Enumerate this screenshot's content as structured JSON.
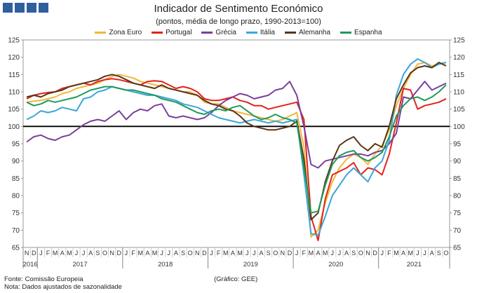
{
  "header": {
    "title": "Indicador de Sentimento Económico",
    "subtitle": "(pontos, média de longo prazo, 1990-2013=100)"
  },
  "footer": {
    "source": "Fonte: Comissão Europeia",
    "source_right": "(Gráfico: GEE)",
    "note": "Nota: Dados ajustados de sazonalidade"
  },
  "chart_data": {
    "type": "line",
    "title": "Indicador de Sentimento Económico",
    "subtitle": "(pontos, média de longo prazo, 1990-2013=100)",
    "ylim": [
      65,
      125
    ],
    "yticks": [
      65,
      70,
      75,
      80,
      85,
      90,
      95,
      100,
      105,
      110,
      115,
      120,
      125
    ],
    "reference_line": 100,
    "month_labels": [
      "N",
      "D",
      "J",
      "F",
      "M",
      "A",
      "M",
      "J",
      "J",
      "A",
      "S",
      "O",
      "N",
      "D",
      "J",
      "F",
      "M",
      "A",
      "M",
      "J",
      "J",
      "A",
      "S",
      "O",
      "N",
      "D",
      "J",
      "F",
      "M",
      "A",
      "M",
      "J",
      "J",
      "A",
      "S",
      "O",
      "N",
      "D",
      "J",
      "F",
      "M",
      "A",
      "M",
      "J",
      "J",
      "A",
      "S",
      "O",
      "N",
      "D",
      "J",
      "F",
      "M",
      "A",
      "M",
      "J",
      "J",
      "A",
      "S",
      "O"
    ],
    "years": [
      {
        "label": "2016",
        "start": 0,
        "end": 1
      },
      {
        "label": "2017",
        "start": 2,
        "end": 13
      },
      {
        "label": "2018",
        "start": 14,
        "end": 25
      },
      {
        "label": "2019",
        "start": 26,
        "end": 37
      },
      {
        "label": "2020",
        "start": 38,
        "end": 49
      },
      {
        "label": "2021",
        "start": 50,
        "end": 59
      }
    ],
    "legend_position": "top",
    "series": [
      {
        "name": "Zona Euro",
        "color": "#f2b63a",
        "values": [
          107.0,
          107.3,
          107.5,
          108.0,
          108.5,
          109.5,
          110.0,
          111.0,
          111.5,
          112.0,
          112.5,
          113.5,
          114.5,
          115.0,
          114.5,
          114.0,
          113.0,
          112.5,
          112.0,
          111.5,
          111.0,
          110.5,
          110.0,
          110.0,
          109.0,
          107.0,
          106.5,
          106.5,
          105.5,
          104.5,
          104.0,
          103.5,
          103.0,
          102.5,
          102.0,
          101.5,
          102.0,
          103.0,
          104.0,
          94.0,
          68.0,
          70.0,
          78.0,
          84.0,
          88.0,
          90.5,
          92.0,
          91.0,
          89.0,
          92.0,
          94.5,
          99.0,
          106.0,
          111.0,
          115.0,
          118.0,
          118.5,
          117.5,
          118.0,
          118.5
        ]
      },
      {
        "name": "Portugal",
        "color": "#e2231a",
        "values": [
          108.0,
          109.0,
          109.5,
          109.8,
          110.0,
          111.0,
          111.5,
          112.0,
          112.5,
          112.0,
          113.0,
          113.5,
          113.8,
          113.5,
          113.0,
          112.5,
          112.0,
          113.0,
          113.2,
          113.0,
          112.0,
          111.0,
          111.5,
          111.0,
          110.0,
          108.0,
          107.5,
          107.5,
          108.0,
          108.5,
          107.5,
          107.0,
          106.0,
          106.0,
          105.0,
          105.5,
          106.0,
          106.5,
          107.0,
          102.0,
          74.0,
          67.0,
          79.0,
          86.0,
          87.0,
          88.0,
          89.5,
          86.0,
          88.0,
          87.5,
          86.0,
          92.0,
          101.0,
          111.0,
          110.5,
          105.0,
          106.0,
          106.5,
          107.0,
          108.0
        ]
      },
      {
        "name": "Grécia",
        "color": "#7b3f9e",
        "values": [
          95.5,
          97.0,
          97.5,
          96.5,
          96.0,
          97.0,
          97.5,
          99.0,
          100.5,
          101.5,
          102.0,
          101.5,
          103.0,
          104.5,
          102.0,
          104.0,
          105.0,
          104.5,
          106.0,
          106.5,
          103.0,
          102.5,
          103.0,
          102.5,
          102.0,
          102.5,
          104.0,
          106.0,
          107.5,
          108.5,
          109.5,
          109.0,
          108.0,
          108.5,
          109.0,
          110.5,
          111.0,
          113.0,
          109.0,
          100.0,
          89.0,
          88.0,
          90.0,
          90.5,
          91.0,
          91.5,
          92.0,
          92.0,
          91.5,
          92.5,
          93.0,
          95.0,
          98.0,
          108.5,
          108.0,
          110.5,
          113.0,
          110.5,
          111.5,
          112.5
        ]
      },
      {
        "name": "Itália",
        "color": "#3aa6d9",
        "values": [
          102.0,
          103.0,
          104.5,
          104.0,
          104.5,
          105.5,
          105.0,
          104.5,
          108.0,
          108.5,
          110.0,
          110.5,
          111.5,
          111.0,
          110.5,
          110.0,
          109.5,
          109.0,
          109.0,
          108.5,
          108.0,
          107.5,
          106.5,
          106.0,
          105.5,
          104.5,
          103.5,
          102.5,
          102.0,
          101.5,
          101.0,
          101.5,
          102.0,
          101.5,
          101.0,
          101.5,
          101.0,
          101.5,
          102.0,
          86.0,
          69.0,
          68.5,
          74.0,
          80.0,
          83.0,
          86.0,
          88.0,
          86.0,
          84.0,
          88.0,
          90.0,
          96.0,
          109.0,
          115.0,
          118.0,
          119.5,
          118.5,
          117.0,
          118.0,
          118.5
        ]
      },
      {
        "name": "Alemanha",
        "color": "#5a3616",
        "values": [
          108.5,
          109.0,
          108.5,
          109.5,
          110.0,
          110.5,
          111.5,
          112.0,
          112.5,
          113.0,
          113.5,
          114.5,
          115.0,
          114.5,
          113.5,
          112.5,
          112.0,
          111.5,
          111.0,
          112.0,
          111.0,
          110.5,
          110.0,
          109.5,
          109.0,
          107.5,
          106.5,
          106.0,
          105.0,
          104.5,
          103.0,
          101.0,
          100.0,
          99.5,
          99.0,
          99.0,
          99.5,
          100.0,
          101.5,
          90.5,
          73.0,
          75.0,
          84.0,
          90.0,
          94.5,
          96.0,
          97.0,
          94.5,
          93.0,
          95.0,
          94.0,
          100.0,
          108.0,
          112.0,
          115.5,
          117.0,
          117.5,
          117.0,
          118.5,
          117.5
        ]
      },
      {
        "name": "Espanha",
        "color": "#1f9a5a",
        "values": [
          107.0,
          106.0,
          106.5,
          107.5,
          107.0,
          107.5,
          108.0,
          108.5,
          109.5,
          110.5,
          111.0,
          111.5,
          111.5,
          111.0,
          110.5,
          110.5,
          110.0,
          109.5,
          109.0,
          108.0,
          107.5,
          107.0,
          106.0,
          105.0,
          104.0,
          103.5,
          104.5,
          105.0,
          104.5,
          105.5,
          106.0,
          104.5,
          103.0,
          102.0,
          102.5,
          103.5,
          102.5,
          102.0,
          101.0,
          88.0,
          75.0,
          75.5,
          83.0,
          89.0,
          91.5,
          92.5,
          93.0,
          91.0,
          90.0,
          91.0,
          92.5,
          97.0,
          103.0,
          106.0,
          108.0,
          108.5,
          107.5,
          108.5,
          110.0,
          112.0
        ]
      }
    ]
  }
}
